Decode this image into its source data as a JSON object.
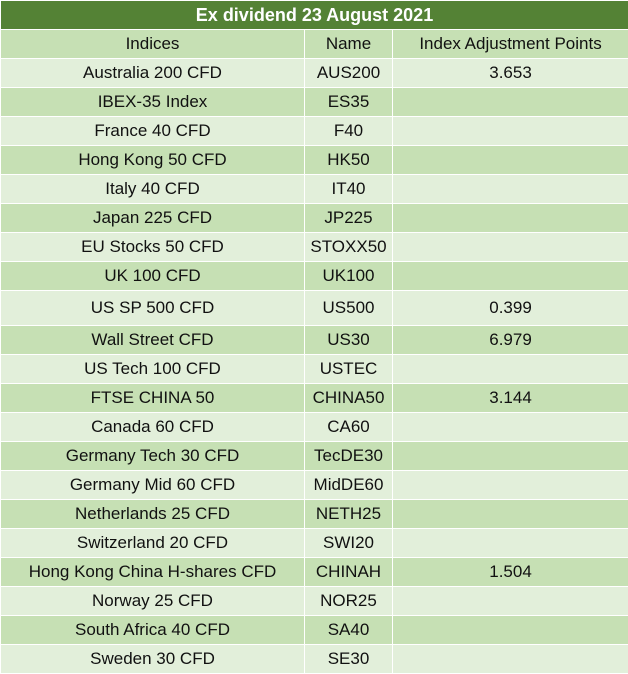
{
  "title": "Ex dividend 23 August 2021",
  "columns": [
    "Indices",
    "Name",
    "Index Adjustment Points"
  ],
  "rows": [
    {
      "index": "Australia 200 CFD",
      "name": "AUS200",
      "points": "3.653"
    },
    {
      "index": "IBEX-35 Index",
      "name": "ES35",
      "points": ""
    },
    {
      "index": "France 40 CFD",
      "name": "F40",
      "points": ""
    },
    {
      "index": "Hong Kong 50 CFD",
      "name": "HK50",
      "points": ""
    },
    {
      "index": "Italy 40 CFD",
      "name": "IT40",
      "points": ""
    },
    {
      "index": "Japan 225 CFD",
      "name": "JP225",
      "points": ""
    },
    {
      "index": "EU Stocks 50 CFD",
      "name": "STOXX50",
      "points": ""
    },
    {
      "index": "UK 100 CFD",
      "name": "UK100",
      "points": ""
    },
    {
      "index": "US SP 500 CFD",
      "name": "US500",
      "points": "0.399"
    },
    {
      "index": "Wall Street CFD",
      "name": "US30",
      "points": "6.979"
    },
    {
      "index": "US Tech 100 CFD",
      "name": "USTEC",
      "points": ""
    },
    {
      "index": "FTSE CHINA 50",
      "name": "CHINA50",
      "points": "3.144"
    },
    {
      "index": "Canada 60 CFD",
      "name": "CA60",
      "points": ""
    },
    {
      "index": "Germany Tech 30 CFD",
      "name": "TecDE30",
      "points": ""
    },
    {
      "index": "Germany Mid 60 CFD",
      "name": "MidDE60",
      "points": ""
    },
    {
      "index": "Netherlands 25 CFD",
      "name": "NETH25",
      "points": ""
    },
    {
      "index": "Switzerland 20 CFD",
      "name": "SWI20",
      "points": ""
    },
    {
      "index": "Hong Kong China H-shares CFD",
      "name": "CHINAH",
      "points": "1.504"
    },
    {
      "index": "Norway 25 CFD",
      "name": "NOR25",
      "points": ""
    },
    {
      "index": "South Africa 40 CFD",
      "name": "SA40",
      "points": ""
    },
    {
      "index": "Sweden 30 CFD",
      "name": "SE30",
      "points": ""
    }
  ],
  "colors": {
    "title_bg": "#548235",
    "band_light": "#e2efda",
    "band_dark": "#c6e0b4"
  }
}
